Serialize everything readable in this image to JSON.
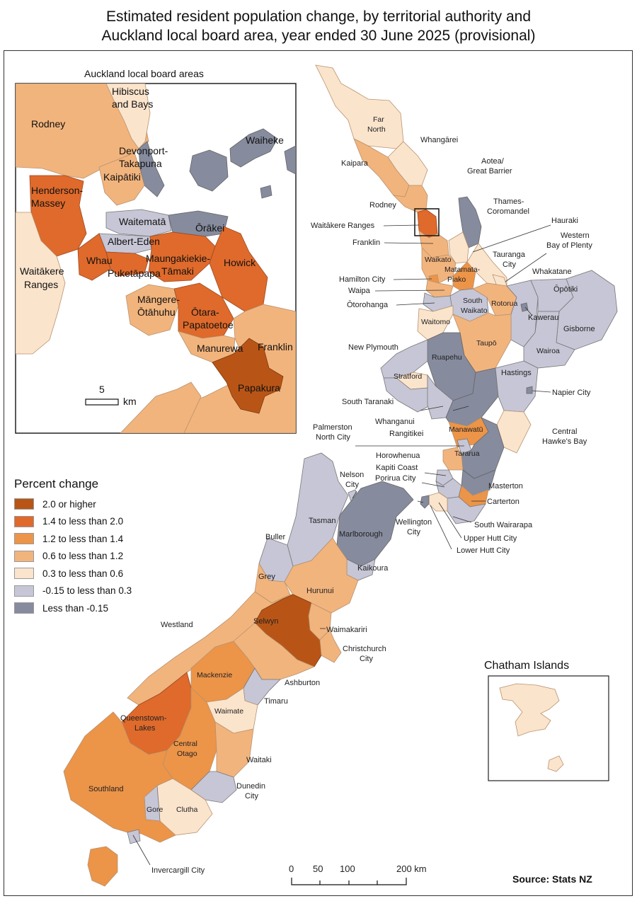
{
  "title_line1": "Estimated resident population change, by territorial authority and",
  "title_line2": "Auckland local board area, year ended 30 June 2025 (provisional)",
  "inset_title": "Auckland local board areas",
  "chatham_title": "Chatham Islands",
  "source": "Source: Stats NZ",
  "legend": {
    "title": "Percent change",
    "items": [
      {
        "label": "2.0 or higher",
        "color": "#b85516"
      },
      {
        "label": "1.4 to less than 2.0",
        "color": "#df6a2b"
      },
      {
        "label": "1.2 to less than 1.4",
        "color": "#ec9448"
      },
      {
        "label": "0.6 to less than 1.2",
        "color": "#f2b47d"
      },
      {
        "label": "0.3 to less than 0.6",
        "color": "#fbe4cc"
      },
      {
        "label": "-0.15 to less than 0.3",
        "color": "#c6c6d6"
      },
      {
        "label": "Less than -0.15",
        "color": "#868b9e"
      }
    ]
  },
  "inset_scale": {
    "value": "5",
    "unit": "km"
  },
  "main_scale": {
    "ticks": [
      "0",
      "50",
      "100",
      "200 km"
    ]
  },
  "auckland_labels": {
    "hibiscus": [
      "Hibiscus",
      "and Bays"
    ],
    "rodney": "Rodney",
    "waiheke": "Waiheke",
    "devonport": [
      "Devonport-",
      "Takapuna"
    ],
    "kaipatiki": "Kaipātiki",
    "henderson": [
      "Henderson-",
      "Massey"
    ],
    "waitemata": "Waitematā",
    "orakei": "Ōrākei",
    "albert_eden": "Albert-Eden",
    "whau": "Whau",
    "maungakiekie": [
      "Maungakiekie-",
      "Tāmaki"
    ],
    "howick": "Howick",
    "puketapapa": "Puketāpapa",
    "waitakere": [
      "Waitākere",
      "Ranges"
    ],
    "mangere": [
      "Māngere-",
      "Ōtāhuhu"
    ],
    "otara": [
      "Ōtara-",
      "Papatoetoe"
    ],
    "manurewa": "Manurewa",
    "franklin": "Franklin",
    "papakura": "Papakura"
  },
  "ni_labels": {
    "far_north": [
      "Far",
      "North"
    ],
    "whangarei": "Whangārei",
    "kaipara": "Kaipara",
    "aotea": [
      "Aotea/",
      "Great Barrier"
    ],
    "rodney": "Rodney",
    "thames": [
      "Thames-",
      "Coromandel"
    ],
    "hauraki": "Hauraki",
    "waitakere": "Waitākere Ranges",
    "wbop": [
      "Western",
      "Bay of Plenty"
    ],
    "franklin": "Franklin",
    "waikato": "Waikato",
    "tauranga": [
      "Tauranga",
      "City"
    ],
    "matamata": [
      "Matamata-",
      "Piako"
    ],
    "whakatane": "Whakatane",
    "hamilton": "Hamilton City",
    "opotiki": "Ōpōtiki",
    "waipa": "Waipa",
    "otorohanga": "Ōtorohanga",
    "south_waikato": [
      "South",
      "Waikato"
    ],
    "rotorua": "Rotorua",
    "kawerau": "Kawerau",
    "gisborne": "Gisborne",
    "waitomo": "Waitomo",
    "new_plymouth": "New Plymouth",
    "taupo": "Taupō",
    "wairoa": "Wairoa",
    "ruapehu": "Ruapehu",
    "stratford": "Stratford",
    "hastings": "Hastings",
    "napier": "Napier City",
    "south_taranaki": "South Taranaki",
    "whanganui": "Whanganui",
    "rangitikei": "Rangitikei",
    "palmerston": [
      "Palmerston",
      "North City"
    ],
    "manawatu": "Manawatū",
    "chb": [
      "Central",
      "Hawke's Bay"
    ],
    "tararua": "Tararua",
    "horowhenua": "Horowhenua",
    "kapiti": "Kapiti Coast",
    "porirua": "Porirua City",
    "masterton": "Masterton",
    "carterton": "Carterton",
    "wellington": [
      "Wellington",
      "City"
    ],
    "south_wairarapa": "South Wairarapa",
    "upper_hutt": "Upper Hutt City",
    "lower_hutt": "Lower Hutt City"
  },
  "si_labels": {
    "nelson": [
      "Nelson",
      "City"
    ],
    "tasman": "Tasman",
    "buller": "Buller",
    "marlborough": "Marlborough",
    "kaikoura": "Kaikoura",
    "grey": "Grey",
    "hurunui": "Hurunui",
    "westland": "Westland",
    "selwyn": "Selwyn",
    "waimakariri": "Waimakariri",
    "christchurch": [
      "Christchurch",
      "City"
    ],
    "mackenzie": "Mackenzie",
    "ashburton": "Ashburton",
    "timaru": "Timaru",
    "waimate": "Waimate",
    "queenstown": [
      "Queenstown-",
      "Lakes"
    ],
    "central_otago": [
      "Central",
      "Otago"
    ],
    "waitaki": "Waitaki",
    "southland": "Southland",
    "dunedin": [
      "Dunedin",
      "City"
    ],
    "gore": "Gore",
    "clutha": "Clutha",
    "invercargill": "Invercargill City"
  }
}
